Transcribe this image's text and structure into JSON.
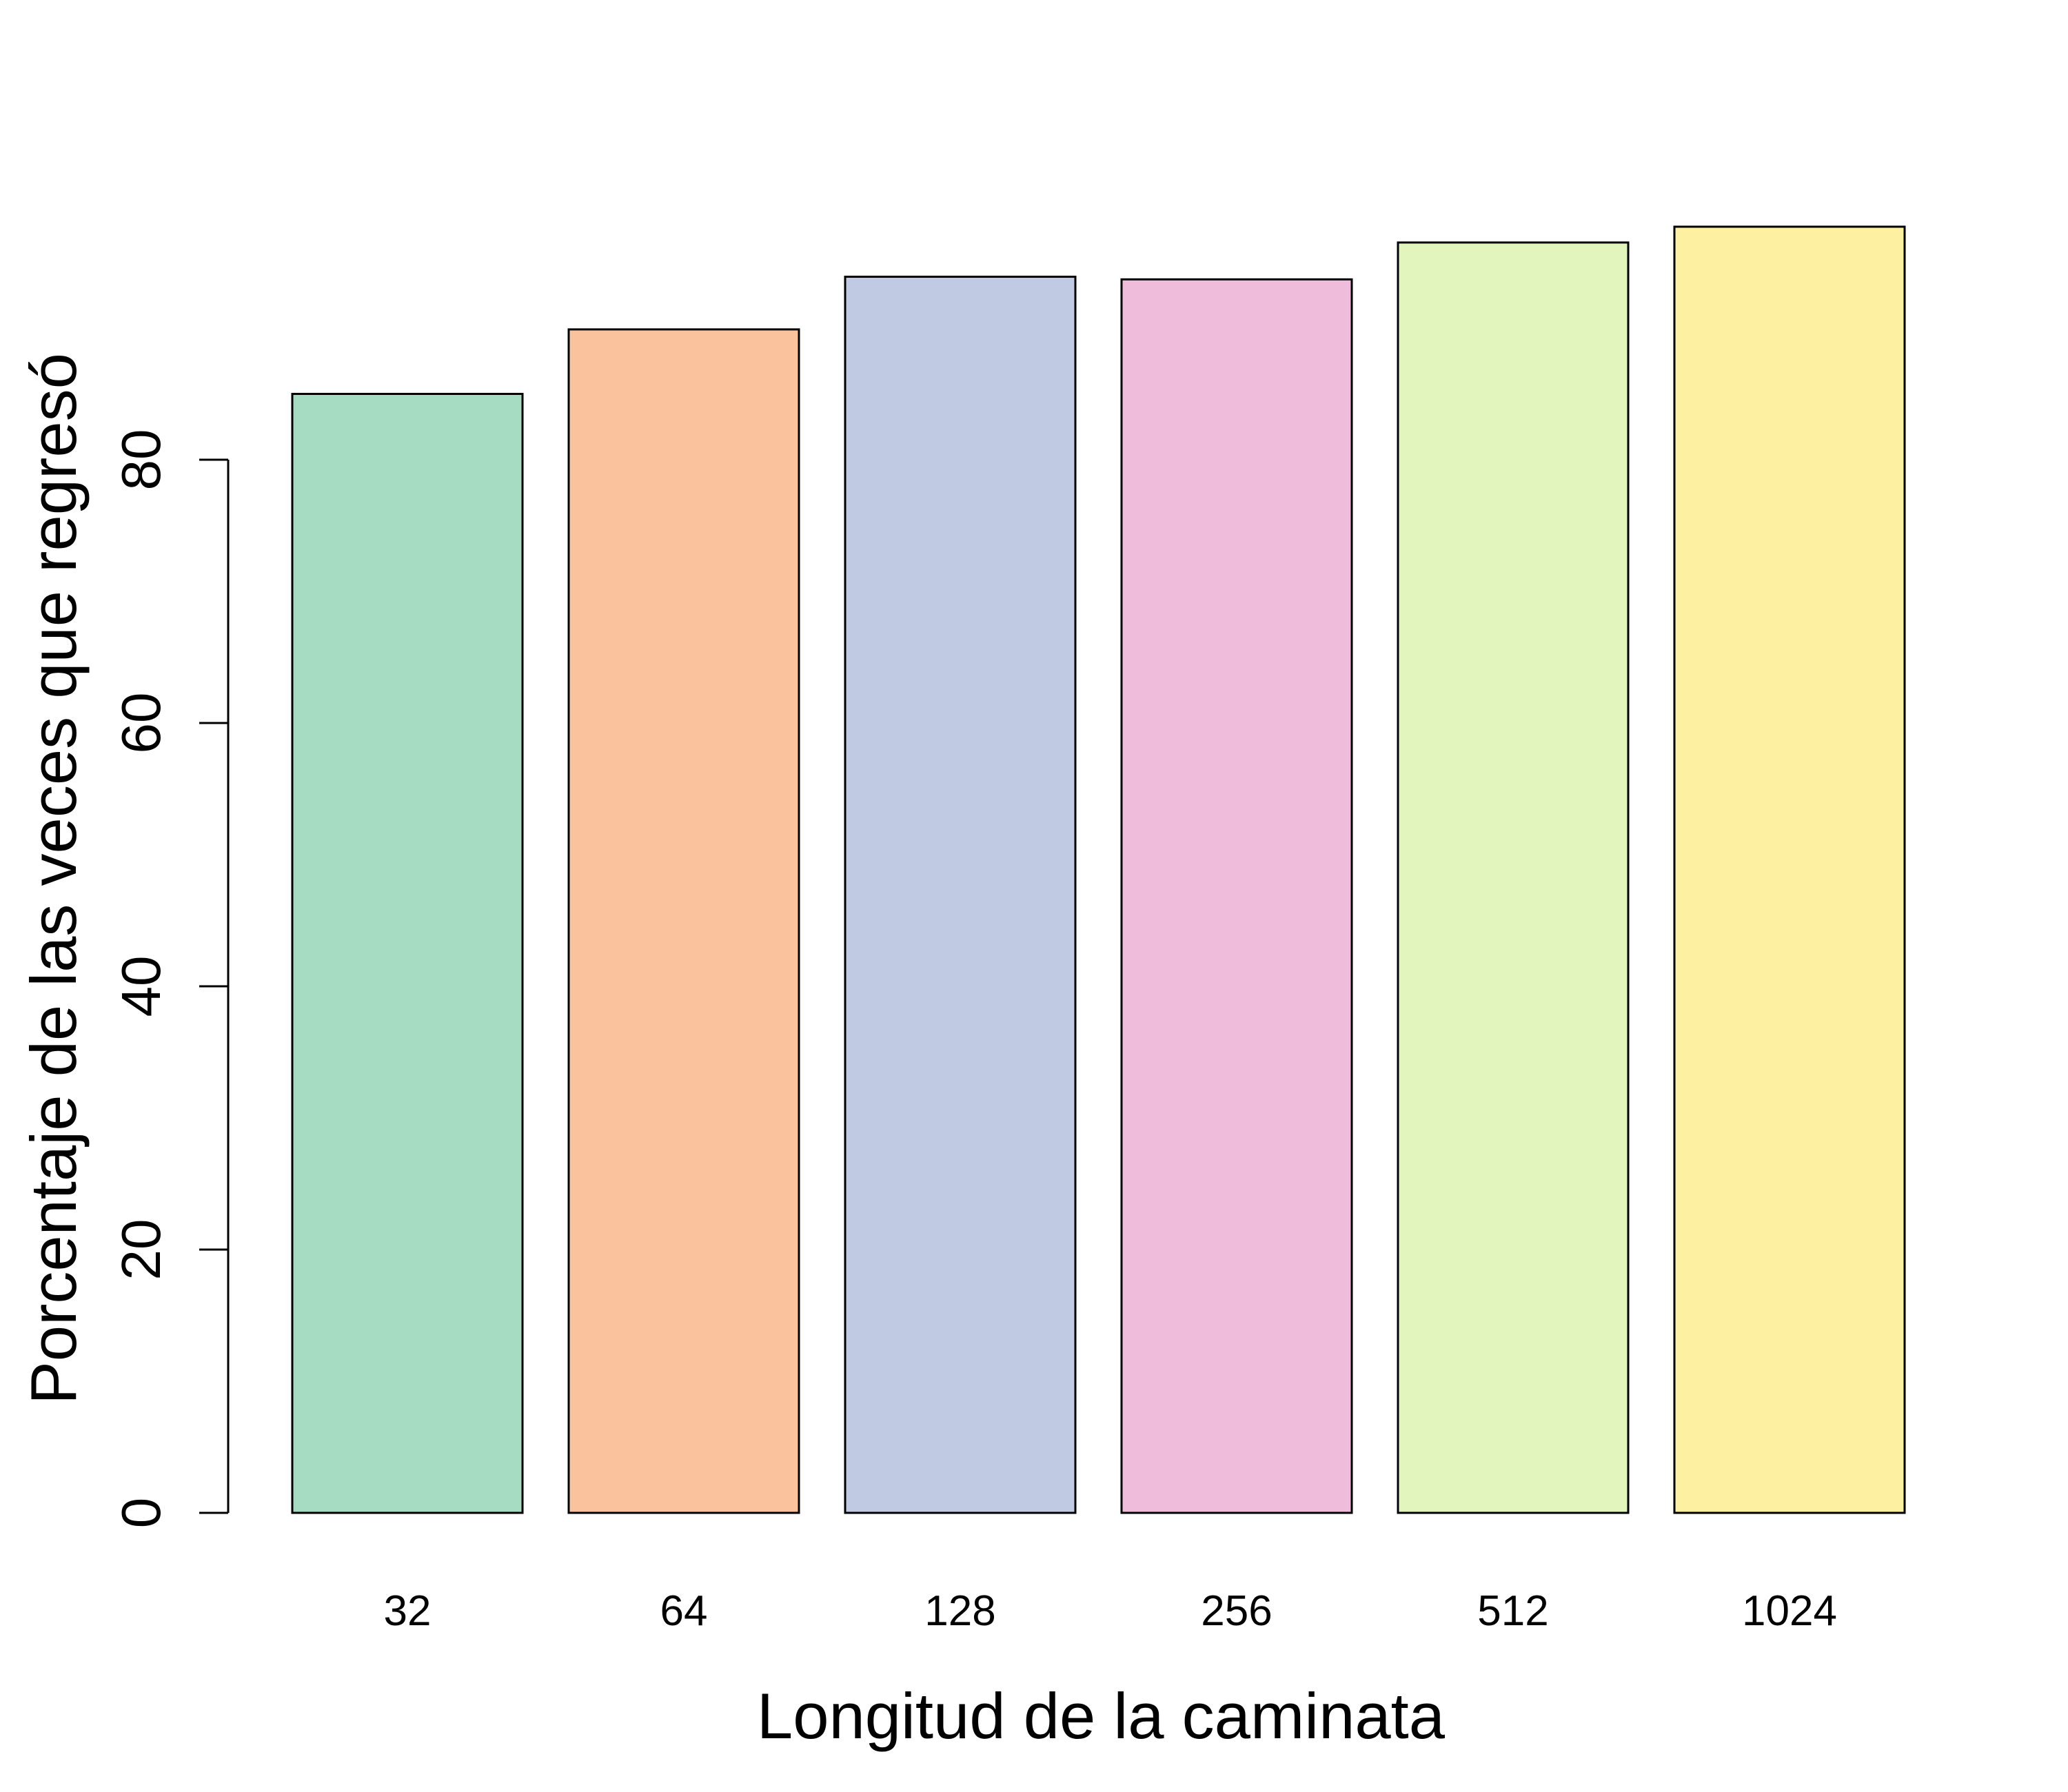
{
  "chart_data": {
    "type": "bar",
    "title": "",
    "xlabel": "Longitud de la caminata",
    "ylabel": "Porcentaje de las veces que regresó",
    "categories": [
      "32",
      "64",
      "128",
      "256",
      "512",
      "1024"
    ],
    "values": [
      85,
      89.9,
      93.9,
      93.7,
      96.5,
      97.7
    ],
    "colors": [
      "#A6DDC2",
      "#FAC39E",
      "#C0CBE3",
      "#EFBCDC",
      "#E1F5BD",
      "#FDF0A0"
    ],
    "bar_border_color": "#000000",
    "ylim": [
      0,
      100
    ],
    "yticks": [
      0,
      20,
      40,
      60,
      80
    ],
    "ytick_labels": [
      "0",
      "20",
      "40",
      "60",
      "80"
    ],
    "grid": false,
    "legend": "none"
  }
}
